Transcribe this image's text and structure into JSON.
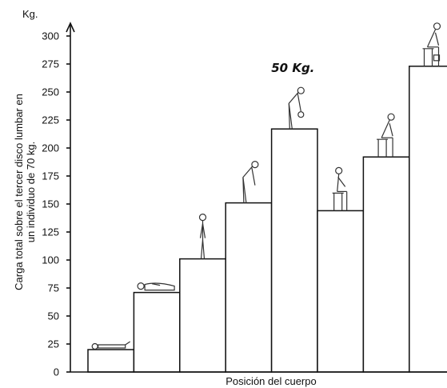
{
  "chart_data": {
    "type": "bar",
    "title": "",
    "ylabel_line1": "Carga total sobre el tercer disco lumbar en",
    "ylabel_line2": "un individuo de 70 kg.",
    "xlabel": "Posición del cuerpo",
    "y_unit": "Kg.",
    "ylim": [
      0,
      300
    ],
    "yticks": [
      "0",
      "25",
      "50",
      "75",
      "100",
      "125",
      "150",
      "175",
      "200",
      "225",
      "250",
      "275",
      "300"
    ],
    "grid": false,
    "categories": [
      "lying-supine",
      "lying-side",
      "standing",
      "standing-bent-forward",
      "standing-bent-lifting-weight",
      "sitting-upright",
      "sitting-bent-forward",
      "sitting-bent-lifting-weight"
    ],
    "values": [
      20,
      71,
      101,
      151,
      217,
      144,
      192,
      273
    ],
    "annotation": {
      "text": "50 Kg.",
      "category": "standing-bent-lifting-weight"
    }
  }
}
